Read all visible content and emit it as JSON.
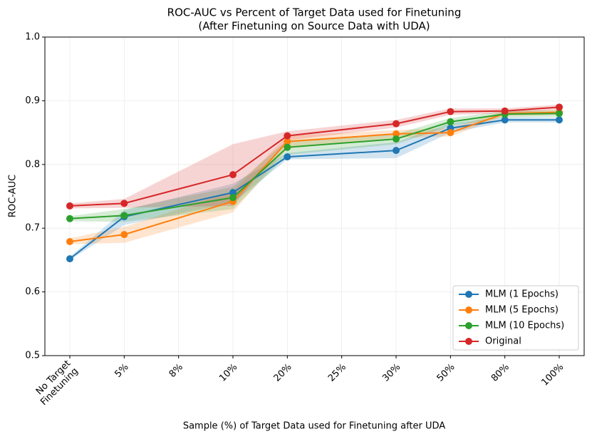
{
  "chart_data": {
    "type": "line",
    "title": "ROC-AUC vs Percent of Target Data used for Finetuning",
    "subtitle": "(After Finetuning on Source Data with UDA)",
    "x_label": "Sample (%) of Target Data used for Finetuning after UDA",
    "y_label": "ROC-AUC",
    "categories": [
      "No Target\nFinetuning",
      "5%",
      "8%",
      "10%",
      "20%",
      "25%",
      "30%",
      "50%",
      "80%",
      "100%"
    ],
    "ylim": [
      0.5,
      1.0
    ],
    "yticks": [
      0.5,
      0.6,
      0.7,
      0.8,
      0.9,
      {
        "value": 1,
        "label": "1.0"
      }
    ],
    "grid": true,
    "legend": "lower right",
    "series": [
      {
        "name": "MLM (1 Epochs)",
        "color": "#1f77b4",
        "x": [
          "No Target\nFinetuning",
          "5%",
          "10%",
          "20%",
          "30%",
          "50%",
          "80%",
          "100%"
        ],
        "values": [
          0.652,
          0.718,
          0.756,
          0.812,
          0.822,
          0.857,
          0.87,
          0.87
        ],
        "lower": [
          0.65,
          0.705,
          0.74,
          0.808,
          0.81,
          0.85,
          0.866,
          0.866
        ],
        "upper": [
          0.655,
          0.728,
          0.77,
          0.818,
          0.835,
          0.865,
          0.874,
          0.874
        ]
      },
      {
        "name": "MLM (5 Epochs)",
        "color": "#ff7f0e",
        "x": [
          "No Target\nFinetuning",
          "5%",
          "10%",
          "20%",
          "30%",
          "50%",
          "80%",
          "100%"
        ],
        "values": [
          0.679,
          0.69,
          0.742,
          0.836,
          0.848,
          0.85,
          0.88,
          0.882
        ],
        "lower": [
          0.675,
          0.677,
          0.725,
          0.825,
          0.842,
          0.844,
          0.876,
          0.878
        ],
        "upper": [
          0.684,
          0.702,
          0.758,
          0.845,
          0.854,
          0.857,
          0.884,
          0.886
        ]
      },
      {
        "name": "MLM (10 Epochs)",
        "color": "#2ca02c",
        "x": [
          "No Target\nFinetuning",
          "5%",
          "10%",
          "20%",
          "30%",
          "50%",
          "80%",
          "100%"
        ],
        "values": [
          0.715,
          0.72,
          0.748,
          0.827,
          0.84,
          0.867,
          0.879,
          0.88
        ],
        "lower": [
          0.711,
          0.71,
          0.73,
          0.815,
          0.832,
          0.86,
          0.874,
          0.875
        ],
        "upper": [
          0.719,
          0.73,
          0.765,
          0.838,
          0.848,
          0.873,
          0.884,
          0.885
        ]
      },
      {
        "name": "Original",
        "color": "#d62728",
        "x": [
          "No Target\nFinetuning",
          "5%",
          "10%",
          "20%",
          "30%",
          "50%",
          "80%",
          "100%"
        ],
        "values": [
          0.735,
          0.739,
          0.784,
          0.845,
          0.864,
          0.883,
          0.884,
          0.89
        ],
        "lower": [
          0.731,
          0.732,
          0.735,
          0.838,
          0.858,
          0.878,
          0.88,
          0.886
        ],
        "upper": [
          0.739,
          0.746,
          0.832,
          0.852,
          0.87,
          0.888,
          0.888,
          0.894
        ]
      }
    ]
  }
}
